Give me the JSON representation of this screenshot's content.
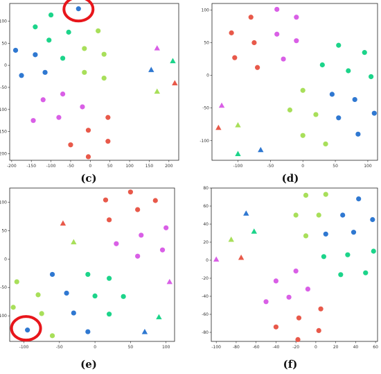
{
  "colors": {
    "red": "#e8594a",
    "magenta": "#d95fe6",
    "blue": "#2f78d1",
    "green": "#1cd48a",
    "lime": "#a8df5a",
    "highlight": "#e8161b"
  },
  "chart_data": [
    {
      "type": "scatter",
      "panel_label": "(c)",
      "xlim": [
        -205,
        225
      ],
      "ylim": [
        -215,
        140
      ],
      "xticks": [
        -200,
        -150,
        -100,
        -50,
        0,
        50,
        100,
        150,
        200
      ],
      "yticks": [
        100,
        50,
        0,
        -50,
        -100,
        -150,
        -200
      ],
      "highlight": {
        "x": -30,
        "y": 127
      },
      "points": [
        {
          "x": -30,
          "y": 128,
          "c": "blue",
          "m": "circle"
        },
        {
          "x": -100,
          "y": 114,
          "c": "green",
          "m": "circle"
        },
        {
          "x": -140,
          "y": 87,
          "c": "green",
          "m": "circle"
        },
        {
          "x": -55,
          "y": 75,
          "c": "green",
          "m": "circle"
        },
        {
          "x": 20,
          "y": 78,
          "c": "lime",
          "m": "circle"
        },
        {
          "x": -105,
          "y": 57,
          "c": "green",
          "m": "circle"
        },
        {
          "x": -190,
          "y": 34,
          "c": "blue",
          "m": "circle"
        },
        {
          "x": -140,
          "y": 24,
          "c": "blue",
          "m": "circle"
        },
        {
          "x": -15,
          "y": 38,
          "c": "lime",
          "m": "circle"
        },
        {
          "x": 35,
          "y": 25,
          "c": "lime",
          "m": "circle"
        },
        {
          "x": -70,
          "y": 16,
          "c": "green",
          "m": "circle"
        },
        {
          "x": -175,
          "y": -23,
          "c": "blue",
          "m": "circle"
        },
        {
          "x": -115,
          "y": -16,
          "c": "blue",
          "m": "circle"
        },
        {
          "x": -15,
          "y": -16,
          "c": "lime",
          "m": "circle"
        },
        {
          "x": 35,
          "y": -29,
          "c": "lime",
          "m": "circle"
        },
        {
          "x": -70,
          "y": -65,
          "c": "magenta",
          "m": "circle"
        },
        {
          "x": -120,
          "y": -78,
          "c": "magenta",
          "m": "circle"
        },
        {
          "x": -20,
          "y": -94,
          "c": "magenta",
          "m": "circle"
        },
        {
          "x": -80,
          "y": -118,
          "c": "magenta",
          "m": "circle"
        },
        {
          "x": -145,
          "y": -125,
          "c": "magenta",
          "m": "circle"
        },
        {
          "x": 45,
          "y": -118,
          "c": "red",
          "m": "circle"
        },
        {
          "x": -5,
          "y": -147,
          "c": "red",
          "m": "circle"
        },
        {
          "x": 45,
          "y": -172,
          "c": "red",
          "m": "circle"
        },
        {
          "x": -50,
          "y": -180,
          "c": "red",
          "m": "circle"
        },
        {
          "x": -5,
          "y": -207,
          "c": "red",
          "m": "circle"
        },
        {
          "x": 170,
          "y": 39,
          "c": "magenta",
          "m": "triangle"
        },
        {
          "x": 210,
          "y": 10,
          "c": "green",
          "m": "triangle"
        },
        {
          "x": 155,
          "y": -10,
          "c": "blue",
          "m": "triangle"
        },
        {
          "x": 215,
          "y": -40,
          "c": "red",
          "m": "triangle"
        },
        {
          "x": 170,
          "y": -59,
          "c": "lime",
          "m": "triangle"
        }
      ]
    },
    {
      "type": "scatter",
      "panel_label": "(d)",
      "xlim": [
        -140,
        115
      ],
      "ylim": [
        -130,
        110
      ],
      "xticks": [
        -100,
        -50,
        0,
        50,
        100
      ],
      "yticks": [
        100,
        50,
        0,
        -50,
        -100
      ],
      "points": [
        {
          "x": -40,
          "y": 101,
          "c": "magenta",
          "m": "circle"
        },
        {
          "x": -10,
          "y": 89,
          "c": "magenta",
          "m": "circle"
        },
        {
          "x": -80,
          "y": 89,
          "c": "red",
          "m": "circle"
        },
        {
          "x": -110,
          "y": 65,
          "c": "red",
          "m": "circle"
        },
        {
          "x": -40,
          "y": 63,
          "c": "magenta",
          "m": "circle"
        },
        {
          "x": -75,
          "y": 50,
          "c": "red",
          "m": "circle"
        },
        {
          "x": -10,
          "y": 53,
          "c": "magenta",
          "m": "circle"
        },
        {
          "x": 55,
          "y": 46,
          "c": "green",
          "m": "circle"
        },
        {
          "x": 95,
          "y": 35,
          "c": "green",
          "m": "circle"
        },
        {
          "x": -105,
          "y": 27,
          "c": "red",
          "m": "circle"
        },
        {
          "x": -30,
          "y": 25,
          "c": "magenta",
          "m": "circle"
        },
        {
          "x": -70,
          "y": 12,
          "c": "red",
          "m": "circle"
        },
        {
          "x": 30,
          "y": 16,
          "c": "green",
          "m": "circle"
        },
        {
          "x": 70,
          "y": 7,
          "c": "green",
          "m": "circle"
        },
        {
          "x": 105,
          "y": -2,
          "c": "green",
          "m": "circle"
        },
        {
          "x": 0,
          "y": -23,
          "c": "lime",
          "m": "circle"
        },
        {
          "x": 45,
          "y": -29,
          "c": "blue",
          "m": "circle"
        },
        {
          "x": 80,
          "y": -37,
          "c": "blue",
          "m": "circle"
        },
        {
          "x": -20,
          "y": -53,
          "c": "lime",
          "m": "circle"
        },
        {
          "x": 20,
          "y": -60,
          "c": "lime",
          "m": "circle"
        },
        {
          "x": 55,
          "y": -65,
          "c": "blue",
          "m": "circle"
        },
        {
          "x": 110,
          "y": -58,
          "c": "blue",
          "m": "circle"
        },
        {
          "x": 85,
          "y": -90,
          "c": "blue",
          "m": "circle"
        },
        {
          "x": 0,
          "y": -92,
          "c": "lime",
          "m": "circle"
        },
        {
          "x": 35,
          "y": -105,
          "c": "lime",
          "m": "circle"
        },
        {
          "x": -125,
          "y": -46,
          "c": "magenta",
          "m": "triangle"
        },
        {
          "x": -130,
          "y": -80,
          "c": "red",
          "m": "triangle"
        },
        {
          "x": -100,
          "y": -76,
          "c": "lime",
          "m": "triangle"
        },
        {
          "x": -100,
          "y": -120,
          "c": "green",
          "m": "triangle"
        },
        {
          "x": -65,
          "y": -114,
          "c": "blue",
          "m": "triangle"
        }
      ]
    },
    {
      "type": "scatter",
      "panel_label": "(e)",
      "xlim": [
        -120,
        112
      ],
      "ylim": [
        -145,
        125
      ],
      "xticks": [
        -100,
        -50,
        0,
        50,
        100
      ],
      "yticks": [
        100,
        50,
        0,
        -50,
        -100
      ],
      "highlight": {
        "x": -97,
        "y": -122
      },
      "points": [
        {
          "x": 50,
          "y": 118,
          "c": "red",
          "m": "circle"
        },
        {
          "x": 15,
          "y": 104,
          "c": "red",
          "m": "circle"
        },
        {
          "x": 85,
          "y": 103,
          "c": "red",
          "m": "circle"
        },
        {
          "x": 60,
          "y": 87,
          "c": "red",
          "m": "circle"
        },
        {
          "x": 20,
          "y": 69,
          "c": "red",
          "m": "circle"
        },
        {
          "x": 100,
          "y": 55,
          "c": "magenta",
          "m": "circle"
        },
        {
          "x": 65,
          "y": 42,
          "c": "magenta",
          "m": "circle"
        },
        {
          "x": 30,
          "y": 27,
          "c": "magenta",
          "m": "circle"
        },
        {
          "x": 95,
          "y": 16,
          "c": "magenta",
          "m": "circle"
        },
        {
          "x": 60,
          "y": 5,
          "c": "magenta",
          "m": "circle"
        },
        {
          "x": -60,
          "y": -27,
          "c": "blue",
          "m": "circle"
        },
        {
          "x": -10,
          "y": -27,
          "c": "green",
          "m": "circle"
        },
        {
          "x": 20,
          "y": -34,
          "c": "green",
          "m": "circle"
        },
        {
          "x": -110,
          "y": -40,
          "c": "lime",
          "m": "circle"
        },
        {
          "x": -40,
          "y": -60,
          "c": "blue",
          "m": "circle"
        },
        {
          "x": -80,
          "y": -63,
          "c": "lime",
          "m": "circle"
        },
        {
          "x": 0,
          "y": -65,
          "c": "green",
          "m": "circle"
        },
        {
          "x": 40,
          "y": -66,
          "c": "green",
          "m": "circle"
        },
        {
          "x": -115,
          "y": -85,
          "c": "lime",
          "m": "circle"
        },
        {
          "x": -30,
          "y": -95,
          "c": "blue",
          "m": "circle"
        },
        {
          "x": -75,
          "y": -96,
          "c": "lime",
          "m": "circle"
        },
        {
          "x": 20,
          "y": -97,
          "c": "green",
          "m": "circle"
        },
        {
          "x": -95,
          "y": -125,
          "c": "blue",
          "m": "circle"
        },
        {
          "x": -10,
          "y": -128,
          "c": "blue",
          "m": "circle"
        },
        {
          "x": -60,
          "y": -135,
          "c": "lime",
          "m": "circle"
        },
        {
          "x": -45,
          "y": 63,
          "c": "red",
          "m": "triangle"
        },
        {
          "x": -30,
          "y": 30,
          "c": "lime",
          "m": "triangle"
        },
        {
          "x": 105,
          "y": -40,
          "c": "magenta",
          "m": "triangle"
        },
        {
          "x": 90,
          "y": -102,
          "c": "green",
          "m": "triangle"
        },
        {
          "x": 70,
          "y": -128,
          "c": "blue",
          "m": "triangle"
        }
      ]
    },
    {
      "type": "scatter",
      "panel_label": "(f)",
      "xlim": [
        -105,
        62
      ],
      "ylim": [
        -90,
        80
      ],
      "xticks": [
        -100,
        -80,
        -60,
        -40,
        -20,
        0,
        20,
        40,
        60
      ],
      "yticks": [
        80,
        60,
        40,
        20,
        0,
        -20,
        -40,
        -60,
        -80
      ],
      "points": [
        {
          "x": -10,
          "y": 72,
          "c": "lime",
          "m": "circle"
        },
        {
          "x": 10,
          "y": 73,
          "c": "lime",
          "m": "circle"
        },
        {
          "x": 43,
          "y": 68,
          "c": "blue",
          "m": "circle"
        },
        {
          "x": -20,
          "y": 50,
          "c": "lime",
          "m": "circle"
        },
        {
          "x": 3,
          "y": 50,
          "c": "lime",
          "m": "circle"
        },
        {
          "x": 27,
          "y": 50,
          "c": "blue",
          "m": "circle"
        },
        {
          "x": 57,
          "y": 45,
          "c": "blue",
          "m": "circle"
        },
        {
          "x": -10,
          "y": 27,
          "c": "lime",
          "m": "circle"
        },
        {
          "x": 10,
          "y": 29,
          "c": "blue",
          "m": "circle"
        },
        {
          "x": 38,
          "y": 31,
          "c": "blue",
          "m": "circle"
        },
        {
          "x": 58,
          "y": 10,
          "c": "green",
          "m": "circle"
        },
        {
          "x": 8,
          "y": 4,
          "c": "green",
          "m": "circle"
        },
        {
          "x": 32,
          "y": 6,
          "c": "green",
          "m": "circle"
        },
        {
          "x": -20,
          "y": -12,
          "c": "magenta",
          "m": "circle"
        },
        {
          "x": 25,
          "y": -16,
          "c": "green",
          "m": "circle"
        },
        {
          "x": 50,
          "y": -14,
          "c": "green",
          "m": "circle"
        },
        {
          "x": -40,
          "y": -23,
          "c": "magenta",
          "m": "circle"
        },
        {
          "x": -8,
          "y": -32,
          "c": "magenta",
          "m": "circle"
        },
        {
          "x": -27,
          "y": -41,
          "c": "magenta",
          "m": "circle"
        },
        {
          "x": -50,
          "y": -46,
          "c": "magenta",
          "m": "circle"
        },
        {
          "x": 5,
          "y": -54,
          "c": "red",
          "m": "circle"
        },
        {
          "x": -17,
          "y": -64,
          "c": "red",
          "m": "circle"
        },
        {
          "x": -40,
          "y": -74,
          "c": "red",
          "m": "circle"
        },
        {
          "x": 3,
          "y": -78,
          "c": "red",
          "m": "circle"
        },
        {
          "x": -18,
          "y": -88,
          "c": "red",
          "m": "circle"
        },
        {
          "x": -70,
          "y": 52,
          "c": "blue",
          "m": "triangle"
        },
        {
          "x": -62,
          "y": 32,
          "c": "green",
          "m": "triangle"
        },
        {
          "x": -85,
          "y": 23,
          "c": "lime",
          "m": "triangle"
        },
        {
          "x": -75,
          "y": 3,
          "c": "red",
          "m": "triangle"
        },
        {
          "x": -100,
          "y": 1,
          "c": "magenta",
          "m": "triangle"
        }
      ]
    }
  ]
}
